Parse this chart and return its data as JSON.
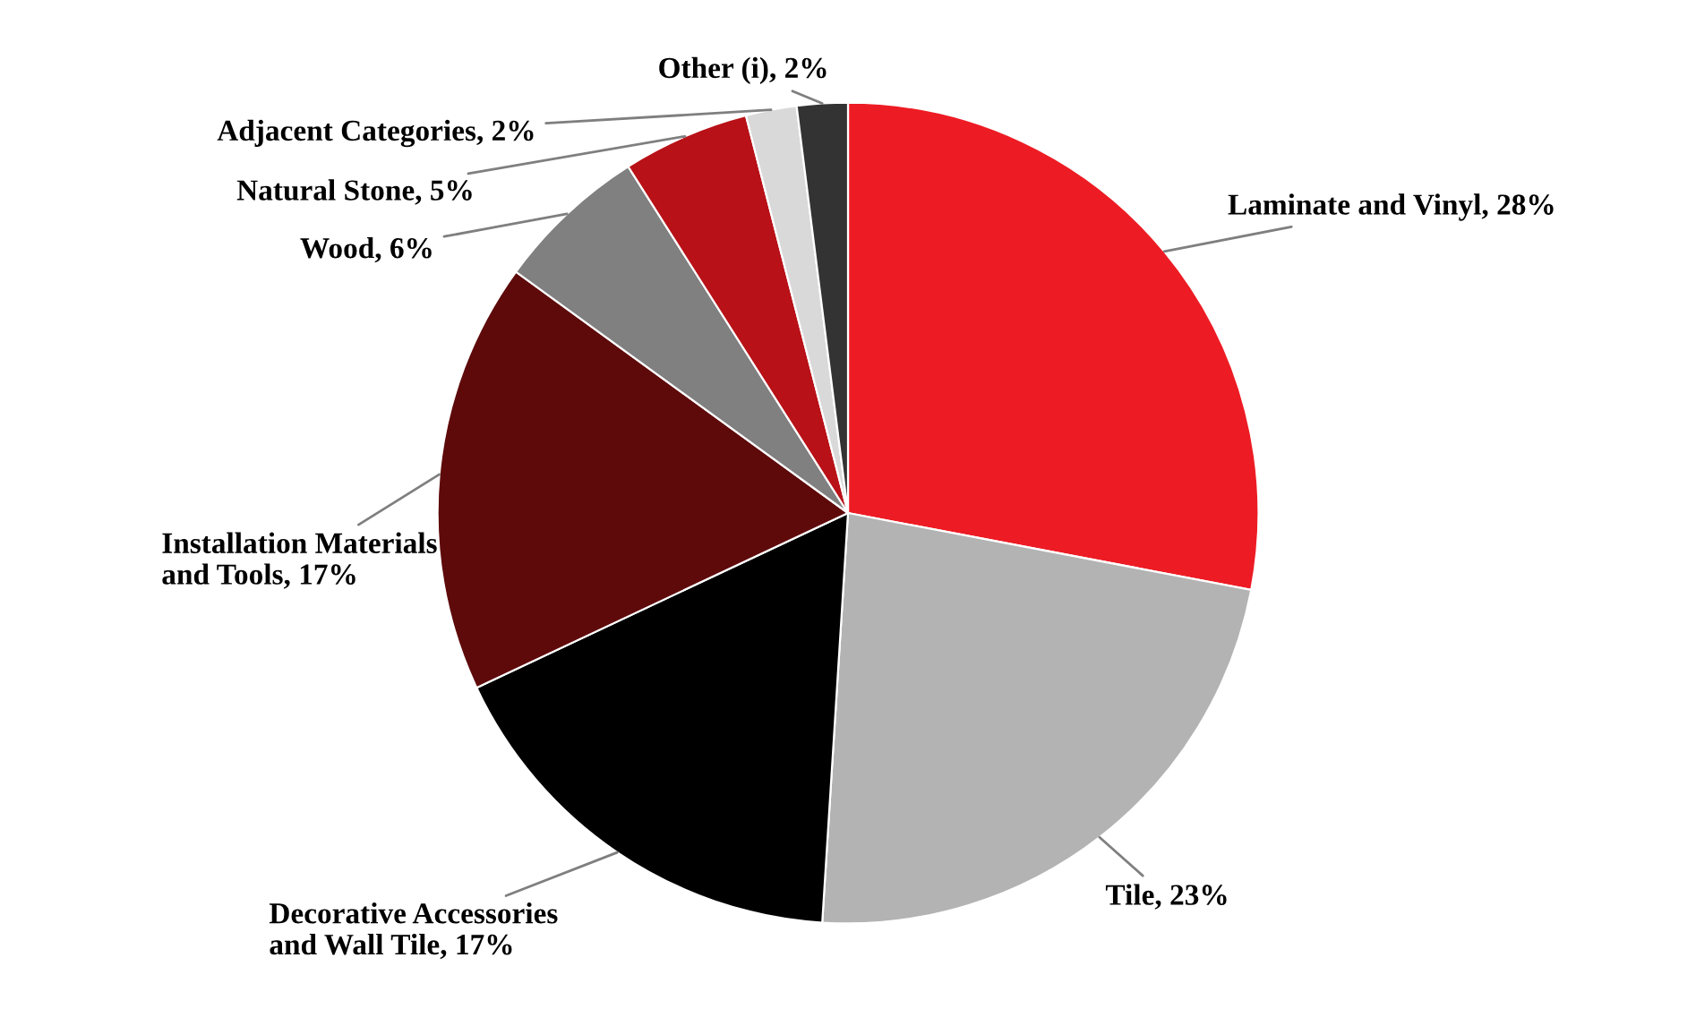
{
  "chart_data": {
    "type": "pie",
    "categories": [
      "Laminate and Vinyl",
      "Tile",
      "Decorative Accessories\nand Wall Tile",
      "Installation Materials\nand Tools",
      "Wood",
      "Natural Stone",
      "Adjacent Categories",
      "Other (i)"
    ],
    "values": [
      28,
      23,
      17,
      17,
      6,
      5,
      2,
      2
    ],
    "value_labels": [
      "28%",
      "23%",
      "17%",
      "17%",
      "6%",
      "5%",
      "2%",
      "2%"
    ],
    "colors": [
      "#ed1c24",
      "#b3b3b3",
      "#000000",
      "#5e0a0b",
      "#808080",
      "#b81117",
      "#d9d9d9",
      "#333333"
    ]
  }
}
